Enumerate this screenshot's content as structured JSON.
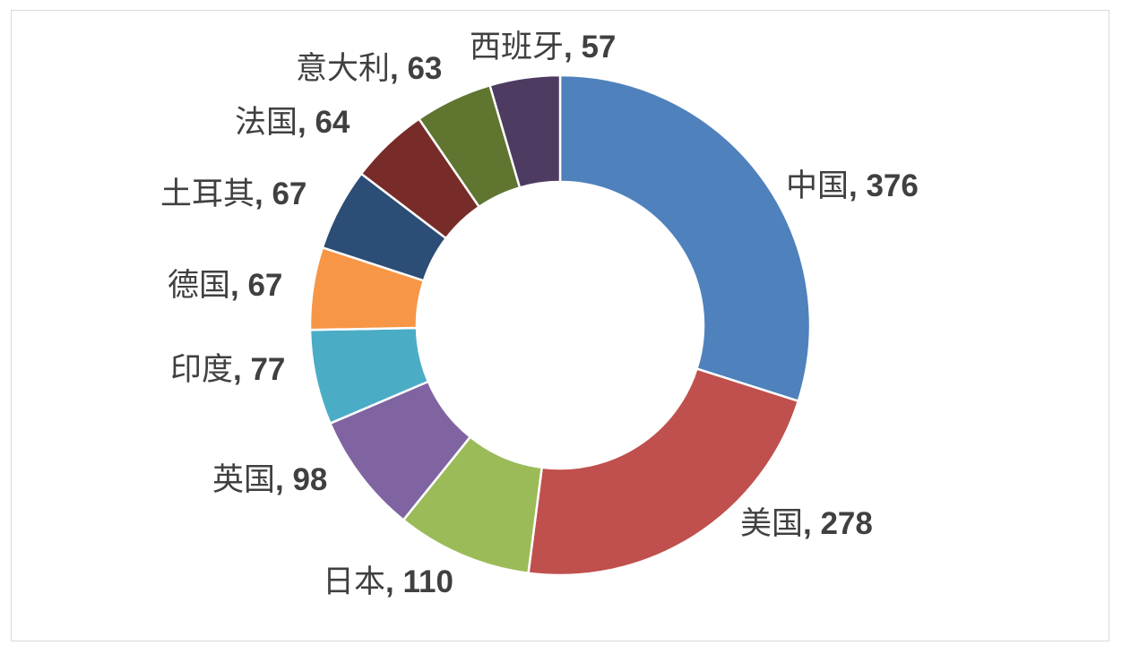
{
  "chart_data": {
    "type": "pie",
    "variant": "doughnut",
    "title": "",
    "legend": "none",
    "categories": [
      "中国",
      "美国",
      "日本",
      "英国",
      "印度",
      "德国",
      "土耳其",
      "法国",
      "意大利",
      "西班牙"
    ],
    "values": [
      376,
      278,
      110,
      98,
      77,
      67,
      67,
      64,
      63,
      57
    ],
    "colors": [
      "#4F81BD",
      "#C0504D",
      "#9BBB59",
      "#8064A2",
      "#4BACC6",
      "#F79646",
      "#2C4D75",
      "#772C2A",
      "#5F7530",
      "#4D3B62"
    ],
    "label_separator": ", "
  }
}
